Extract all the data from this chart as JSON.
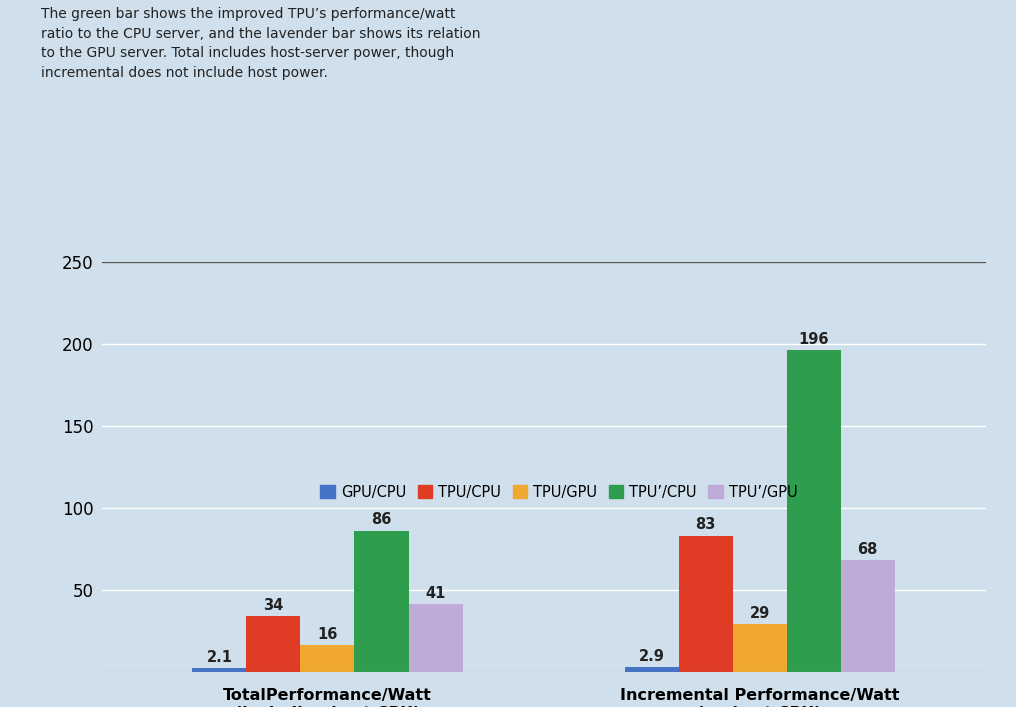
{
  "background_color": "#cfe0ec",
  "annotation_text": "The green bar shows the improved TPU’s performance/watt\nratio to the CPU server, and the lavender bar shows its relation\nto the GPU server. Total includes host-server power, though\nincremental does not include host power.",
  "groups": [
    "TotalPerformance/Watt\n(including host CPU)",
    "Incremental Performance/Watt\n(no host CPU)"
  ],
  "series": [
    {
      "label": "GPU/CPU",
      "color": "#4472c4",
      "values": [
        2.1,
        2.9
      ]
    },
    {
      "label": "TPU/CPU",
      "color": "#e03b24",
      "values": [
        34,
        83
      ]
    },
    {
      "label": "TPU/GPU",
      "color": "#f0a830",
      "values": [
        16,
        29
      ]
    },
    {
      "label": "TPU’/CPU",
      "color": "#2e9e4e",
      "values": [
        86,
        196
      ]
    },
    {
      "label": "TPU’/GPU",
      "color": "#c0aad8",
      "values": [
        41,
        68
      ]
    }
  ],
  "ylim": [
    0,
    250
  ],
  "yticks": [
    50,
    100,
    150,
    200,
    250
  ],
  "bar_width": 0.055,
  "annotation_fontsize": 10.0,
  "legend_fontsize": 10.5,
  "tick_fontsize": 12,
  "label_fontsize": 11.5,
  "value_label_fontsize": 10.5
}
